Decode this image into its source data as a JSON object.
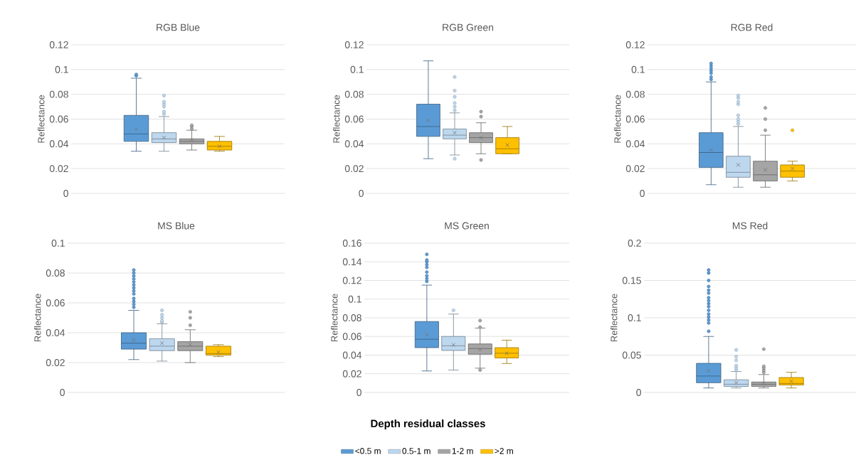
{
  "chart_data": [
    {
      "type": "box",
      "title": "RGB Blue",
      "ylabel": "Reflectance",
      "categories": [
        null
      ],
      "ylim": [
        0,
        0.12
      ],
      "yticks": [
        0,
        0.02,
        0.04,
        0.06,
        0.08,
        0.1,
        0.12
      ],
      "grid": "y",
      "series": [
        {
          "color": "#5b9bd5",
          "boxes": [
            {
              "low": 0.034,
              "q1": 0.042,
              "median": 0.048,
              "q3": 0.063,
              "high": 0.093,
              "mean": 0.052,
              "outliers": [
                0.095,
                0.096
              ]
            }
          ]
        },
        {
          "color": "#bdd7ee",
          "boxes": [
            {
              "low": 0.034,
              "q1": 0.041,
              "median": 0.044,
              "q3": 0.049,
              "high": 0.062,
              "mean": 0.045,
              "outliers": [
                0.064,
                0.066,
                0.07,
                0.072,
                0.074,
                0.079
              ]
            }
          ]
        },
        {
          "color": "#a5a5a5",
          "boxes": [
            {
              "low": 0.035,
              "q1": 0.04,
              "median": 0.042,
              "q3": 0.044,
              "high": 0.051,
              "mean": 0.043,
              "outliers": [
                0.052,
                0.054,
                0.055
              ]
            }
          ]
        },
        {
          "color": "#ffc000",
          "boxes": [
            {
              "low": 0.034,
              "q1": 0.035,
              "median": 0.038,
              "q3": 0.042,
              "high": 0.046,
              "mean": 0.038
            }
          ]
        }
      ]
    },
    {
      "type": "box",
      "title": "RGB Green",
      "ylabel": "Reflectance",
      "categories": [
        null
      ],
      "ylim": [
        0,
        0.12
      ],
      "yticks": [
        0,
        0.02,
        0.04,
        0.06,
        0.08,
        0.1,
        0.12
      ],
      "grid": "y",
      "series": [
        {
          "color": "#5b9bd5",
          "boxes": [
            {
              "low": 0.028,
              "q1": 0.046,
              "median": 0.054,
              "q3": 0.072,
              "high": 0.107,
              "mean": 0.059
            }
          ]
        },
        {
          "color": "#bdd7ee",
          "boxes": [
            {
              "low": 0.031,
              "q1": 0.044,
              "median": 0.047,
              "q3": 0.052,
              "high": 0.065,
              "mean": 0.049,
              "outliers": [
                0.028,
                0.067,
                0.07,
                0.073,
                0.078,
                0.083,
                0.094
              ]
            }
          ]
        },
        {
          "color": "#a5a5a5",
          "boxes": [
            {
              "low": 0.032,
              "q1": 0.041,
              "median": 0.045,
              "q3": 0.049,
              "high": 0.057,
              "mean": 0.045,
              "outliers": [
                0.027,
                0.062,
                0.066
              ]
            }
          ]
        },
        {
          "color": "#ffc000",
          "boxes": [
            {
              "low": 0.032,
              "q1": 0.032,
              "median": 0.036,
              "q3": 0.045,
              "high": 0.054,
              "mean": 0.039
            }
          ]
        }
      ]
    },
    {
      "type": "box",
      "title": "RGB Red",
      "ylabel": "Reflectance",
      "categories": [
        null
      ],
      "ylim": [
        0,
        0.12
      ],
      "yticks": [
        0,
        0.02,
        0.04,
        0.06,
        0.08,
        0.1,
        0.12
      ],
      "grid": "y",
      "series": [
        {
          "color": "#5b9bd5",
          "boxes": [
            {
              "low": 0.007,
              "q1": 0.021,
              "median": 0.033,
              "q3": 0.049,
              "high": 0.09,
              "mean": 0.035,
              "outliers": [
                0.092,
                0.094,
                0.097,
                0.099,
                0.101,
                0.103,
                0.105
              ]
            }
          ]
        },
        {
          "color": "#bdd7ee",
          "boxes": [
            {
              "low": 0.005,
              "q1": 0.013,
              "median": 0.017,
              "q3": 0.03,
              "high": 0.054,
              "mean": 0.023,
              "outliers": [
                0.056,
                0.058,
                0.06,
                0.063,
                0.072,
                0.074,
                0.077,
                0.079
              ]
            }
          ]
        },
        {
          "color": "#a5a5a5",
          "boxes": [
            {
              "low": 0.005,
              "q1": 0.01,
              "median": 0.015,
              "q3": 0.026,
              "high": 0.047,
              "mean": 0.019,
              "outliers": [
                0.051,
                0.06,
                0.069
              ]
            }
          ]
        },
        {
          "color": "#ffc000",
          "boxes": [
            {
              "low": 0.01,
              "q1": 0.013,
              "median": 0.018,
              "q3": 0.023,
              "high": 0.026,
              "mean": 0.02,
              "outliers": [
                0.051
              ]
            }
          ]
        }
      ]
    },
    {
      "type": "box",
      "title": "MS Blue",
      "ylabel": "Reflectance",
      "categories": [
        null
      ],
      "ylim": [
        0,
        0.1
      ],
      "yticks": [
        0,
        0.02,
        0.04,
        0.06,
        0.08,
        0.1
      ],
      "grid": "y",
      "series": [
        {
          "color": "#5b9bd5",
          "boxes": [
            {
              "low": 0.022,
              "q1": 0.029,
              "median": 0.033,
              "q3": 0.04,
              "high": 0.055,
              "mean": 0.035,
              "outliers": [
                0.057,
                0.059,
                0.061,
                0.063,
                0.066,
                0.068,
                0.07,
                0.072,
                0.074,
                0.076,
                0.078,
                0.08,
                0.082
              ]
            }
          ]
        },
        {
          "color": "#bdd7ee",
          "boxes": [
            {
              "low": 0.021,
              "q1": 0.028,
              "median": 0.031,
              "q3": 0.036,
              "high": 0.046,
              "mean": 0.033,
              "outliers": [
                0.047,
                0.048,
                0.05,
                0.052,
                0.055
              ]
            }
          ]
        },
        {
          "color": "#a5a5a5",
          "boxes": [
            {
              "low": 0.02,
              "q1": 0.028,
              "median": 0.031,
              "q3": 0.034,
              "high": 0.042,
              "mean": 0.032,
              "outliers": [
                0.045,
                0.05,
                0.054
              ]
            }
          ]
        },
        {
          "color": "#ffc000",
          "boxes": [
            {
              "low": 0.024,
              "q1": 0.025,
              "median": 0.026,
              "q3": 0.031,
              "high": 0.032,
              "mean": 0.027
            }
          ]
        }
      ]
    },
    {
      "type": "box",
      "title": "MS Green",
      "ylabel": "Reflectance",
      "xlabel": "Depth residual classes",
      "legend": "bottom",
      "categories": [
        null
      ],
      "ylim": [
        0,
        0.16
      ],
      "yticks": [
        0,
        0.02,
        0.04,
        0.06,
        0.08,
        0.1,
        0.12,
        0.14,
        0.16
      ],
      "grid": "y",
      "series": [
        {
          "name": "<0.5 m",
          "color": "#5b9bd5",
          "boxes": [
            {
              "low": 0.023,
              "q1": 0.048,
              "median": 0.057,
              "q3": 0.076,
              "high": 0.115,
              "mean": 0.062,
              "outliers": [
                0.119,
                0.122,
                0.125,
                0.129,
                0.134,
                0.137,
                0.14,
                0.142,
                0.148
              ]
            }
          ]
        },
        {
          "name": "0.5-1 m",
          "color": "#bdd7ee",
          "boxes": [
            {
              "low": 0.024,
              "q1": 0.045,
              "median": 0.05,
              "q3": 0.06,
              "high": 0.084,
              "mean": 0.051,
              "outliers": [
                0.088
              ]
            }
          ]
        },
        {
          "name": "1-2 m",
          "color": "#a5a5a5",
          "boxes": [
            {
              "low": 0.026,
              "q1": 0.041,
              "median": 0.047,
              "q3": 0.052,
              "high": 0.069,
              "mean": 0.046,
              "outliers": [
                0.024,
                0.07,
                0.077
              ]
            }
          ]
        },
        {
          "name": ">2 m",
          "color": "#ffc000",
          "boxes": [
            {
              "low": 0.031,
              "q1": 0.037,
              "median": 0.042,
              "q3": 0.048,
              "high": 0.056,
              "mean": 0.042
            }
          ]
        }
      ]
    },
    {
      "type": "box",
      "title": "MS Red",
      "ylabel": "Reflectance",
      "categories": [
        null
      ],
      "ylim": [
        0,
        0.2
      ],
      "yticks": [
        0,
        0.05,
        0.1,
        0.15,
        0.2
      ],
      "grid": "y",
      "series": [
        {
          "color": "#5b9bd5",
          "boxes": [
            {
              "low": 0.006,
              "q1": 0.013,
              "median": 0.022,
              "q3": 0.039,
              "high": 0.075,
              "mean": 0.029,
              "outliers": [
                0.082,
                0.093,
                0.097,
                0.101,
                0.105,
                0.11,
                0.115,
                0.119,
                0.123,
                0.127,
                0.133,
                0.137,
                0.142,
                0.15,
                0.16,
                0.164
              ]
            }
          ]
        },
        {
          "color": "#bdd7ee",
          "boxes": [
            {
              "low": 0.006,
              "q1": 0.008,
              "median": 0.011,
              "q3": 0.017,
              "high": 0.028,
              "mean": 0.013,
              "outliers": [
                0.03,
                0.033,
                0.036,
                0.043,
                0.048,
                0.057
              ]
            }
          ]
        },
        {
          "color": "#a5a5a5",
          "boxes": [
            {
              "low": 0.006,
              "q1": 0.008,
              "median": 0.011,
              "q3": 0.014,
              "high": 0.024,
              "mean": 0.012,
              "outliers": [
                0.027,
                0.03,
                0.033,
                0.035,
                0.058
              ]
            }
          ]
        },
        {
          "color": "#ffc000",
          "boxes": [
            {
              "low": 0.006,
              "q1": 0.01,
              "median": 0.012,
              "q3": 0.02,
              "high": 0.027,
              "mean": 0.015
            }
          ]
        }
      ]
    }
  ]
}
